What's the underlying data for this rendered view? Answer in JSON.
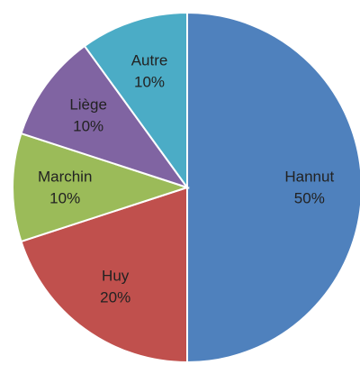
{
  "chart_data": {
    "type": "pie",
    "categories": [
      "Hannut",
      "Huy",
      "Marchin",
      "Liège",
      "Autre"
    ],
    "values": [
      50,
      20,
      10,
      10,
      10
    ],
    "value_labels": [
      "50%",
      "20%",
      "10%",
      "10%",
      "10%"
    ],
    "colors": [
      "#4f81bd",
      "#c0504d",
      "#9bbb59",
      "#8064a2",
      "#4bacc6"
    ]
  }
}
